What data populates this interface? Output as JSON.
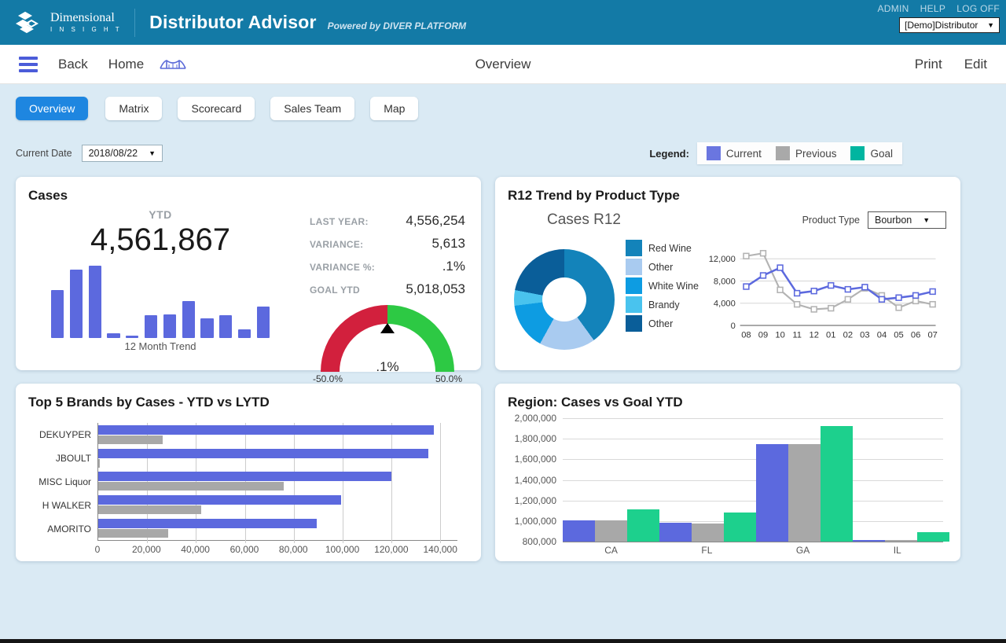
{
  "header": {
    "brand_line1": "Dimensional",
    "brand_line2": "I N S I G H T",
    "title": "Distributor Advisor",
    "subtitle": "Powered by DIVER PLATFORM",
    "links": [
      "ADMIN",
      "HELP",
      "LOG OFF"
    ],
    "account_value": "[Demo]Distributor"
  },
  "navbar": {
    "back": "Back",
    "home": "Home",
    "center_title": "Overview",
    "print": "Print",
    "edit": "Edit"
  },
  "tabs": [
    {
      "label": "Overview",
      "active": true
    },
    {
      "label": "Matrix",
      "active": false
    },
    {
      "label": "Scorecard",
      "active": false
    },
    {
      "label": "Sales Team",
      "active": false
    },
    {
      "label": "Map",
      "active": false
    }
  ],
  "controls": {
    "current_date_label": "Current Date",
    "current_date_value": "2018/08/22"
  },
  "legend": {
    "label": "Legend:",
    "items": [
      {
        "name": "Current",
        "color": "#6a76e0"
      },
      {
        "name": "Previous",
        "color": "#a9a9a9"
      },
      {
        "name": "Goal",
        "color": "#00b5a0"
      }
    ]
  },
  "cards": {
    "cases": {
      "title": "Cases",
      "ytd_label": "YTD",
      "ytd_value": "4,561,867",
      "trend_caption": "12 Month Trend",
      "stats": [
        {
          "label": "LAST YEAR:",
          "value": "4,556,254"
        },
        {
          "label": "VARIANCE:",
          "value": "5,613"
        },
        {
          "label": "VARIANCE %:",
          "value": ".1%"
        },
        {
          "label": "GOAL YTD",
          "value": "5,018,053"
        }
      ]
    },
    "r12": {
      "title": "R12 Trend by Product Type",
      "subtitle": "Cases R12",
      "product_type_label": "Product Type",
      "product_type_value": "Bourbon"
    },
    "brands": {
      "title": "Top 5 Brands by Cases - YTD vs LYTD"
    },
    "region": {
      "title": "Region: Cases vs Goal YTD"
    }
  },
  "chart_data": [
    {
      "id": "cases_12_month_trend",
      "type": "bar",
      "title": "12 Month Trend",
      "note": "no value axis shown; values are relative bar heights in percent of tallest bar",
      "values": [
        66,
        95,
        100,
        6,
        3,
        32,
        33,
        51,
        27,
        32,
        12,
        44
      ],
      "color": "#5c69de"
    },
    {
      "id": "cases_variance_gauge",
      "type": "gauge",
      "min": -50,
      "max": 50,
      "value": 0.1,
      "value_label": ".1%",
      "min_label": "-50.0%",
      "max_label": "50.0%",
      "colors": [
        "#d2203d",
        "#2dc944"
      ]
    },
    {
      "id": "cases_r12_donut",
      "type": "pie",
      "title": "Cases R12",
      "labels": [
        "Red Wine",
        "Other",
        "White Wine",
        "Brandy",
        "Other"
      ],
      "values_pct": [
        40,
        18,
        15,
        5,
        22
      ],
      "colors": [
        "#1383ba",
        "#a9cbf0",
        "#0d9ce2",
        "#49c3ee",
        "#0a5e99"
      ]
    },
    {
      "id": "r12_trend_line",
      "type": "line",
      "x": [
        "08",
        "09",
        "10",
        "11",
        "12",
        "01",
        "02",
        "03",
        "04",
        "05",
        "06",
        "07"
      ],
      "series": [
        {
          "name": "Previous",
          "color": "#b3b3b3",
          "values": [
            12500,
            13000,
            6400,
            3800,
            2900,
            3100,
            4700,
            6700,
            5400,
            3200,
            4400,
            3800
          ]
        },
        {
          "name": "Current",
          "color": "#5c69de",
          "values": [
            7000,
            9000,
            10400,
            5800,
            6200,
            7200,
            6500,
            6900,
            4700,
            5000,
            5400,
            6100
          ]
        }
      ],
      "yticks": [
        0,
        4000,
        8000,
        12000
      ],
      "ylim": [
        0,
        13500
      ],
      "grid": true
    },
    {
      "id": "top5_brands_ytd_vs_lytd",
      "type": "bar",
      "orientation": "horizontal",
      "categories": [
        "DEKUYPER",
        "JBOULT",
        "MISC Liquor",
        "H WALKER",
        "AMORITO"
      ],
      "series": [
        {
          "name": "YTD",
          "color": "#5c69de",
          "values": [
            137500,
            135000,
            120000,
            99500,
            89500
          ]
        },
        {
          "name": "LYTD",
          "color": "#a8a8a8",
          "values": [
            26500,
            800,
            76000,
            42000,
            28500
          ]
        }
      ],
      "xticks": [
        0,
        20000,
        40000,
        60000,
        80000,
        100000,
        120000,
        140000
      ],
      "xlim": [
        0,
        147000
      ],
      "grid": true
    },
    {
      "id": "region_cases_vs_goal_ytd",
      "type": "bar",
      "categories": [
        "CA",
        "FL",
        "GA",
        "IL"
      ],
      "series": [
        {
          "name": "Current",
          "color": "#5c69de",
          "values": [
            1010000,
            980000,
            1750000,
            815000
          ]
        },
        {
          "name": "Previous",
          "color": "#a8a8a8",
          "values": [
            1010000,
            975000,
            1745000,
            805000
          ]
        },
        {
          "name": "Goal",
          "color": "#1dd08d",
          "values": [
            1110000,
            1080000,
            1925000,
            895000
          ]
        }
      ],
      "yticks": [
        800000,
        1000000,
        1200000,
        1400000,
        1600000,
        1800000,
        2000000
      ],
      "ylim": [
        800000,
        2000000
      ],
      "grid": true
    }
  ]
}
